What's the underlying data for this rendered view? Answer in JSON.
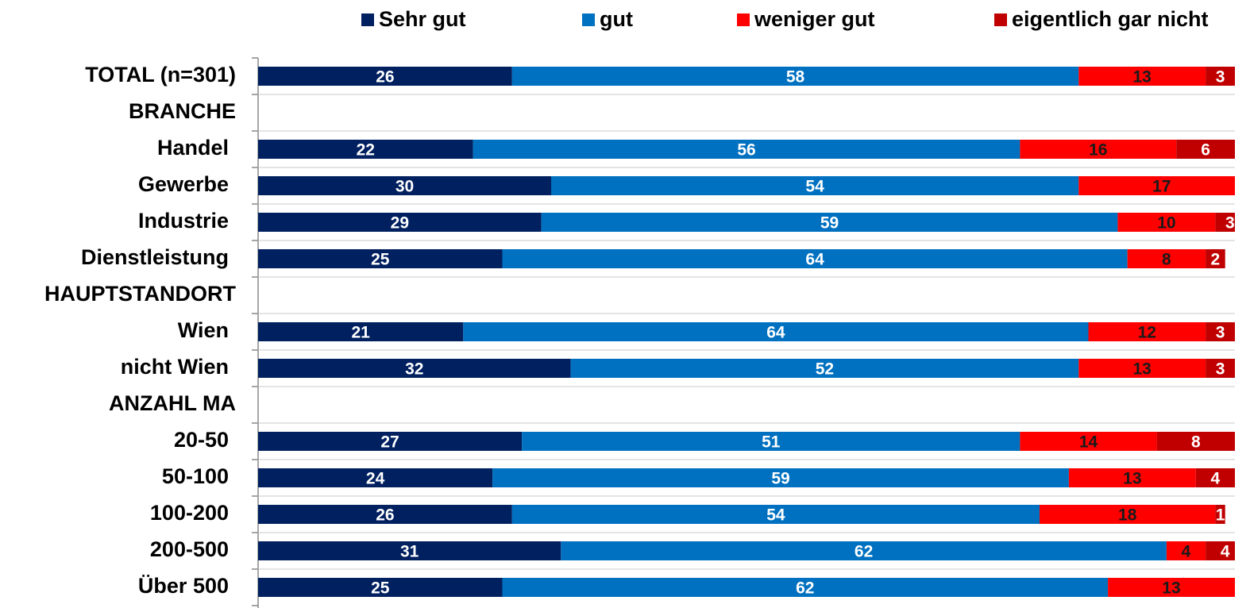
{
  "chart_data": {
    "type": "stacked-bar",
    "orientation": "horizontal",
    "categories": [
      "TOTAL (n=301)",
      "BRANCHE",
      "Handel",
      "Gewerbe",
      "Industrie",
      "Dienstleistung",
      "HAUPTSTANDORT",
      "Wien",
      "nicht Wien",
      "ANZAHL MA",
      "20-50",
      "50-100",
      "100-200",
      "200-500",
      "Über 500"
    ],
    "series": [
      {
        "name": "Sehr gut",
        "color": "#002060",
        "label_color": "#ffffff",
        "values": [
          26,
          null,
          22,
          30,
          29,
          25,
          null,
          21,
          32,
          null,
          27,
          24,
          26,
          31,
          25
        ]
      },
      {
        "name": "gut",
        "color": "#0070c0",
        "label_color": "#ffffff",
        "values": [
          58,
          null,
          56,
          54,
          59,
          64,
          null,
          64,
          52,
          null,
          51,
          59,
          54,
          62,
          62
        ]
      },
      {
        "name": "weniger gut",
        "color": "#ff0000",
        "label_color": "#1a1a1a",
        "values": [
          13,
          null,
          16,
          17,
          10,
          8,
          null,
          12,
          13,
          null,
          14,
          13,
          18,
          4,
          13
        ]
      },
      {
        "name": "eigentlich gar nicht",
        "color": "#c00000",
        "label_color": "#ffffff",
        "values": [
          3,
          null,
          6,
          null,
          3,
          2,
          null,
          3,
          3,
          null,
          8,
          4,
          1,
          4,
          null
        ]
      }
    ],
    "xlim": [
      0,
      100
    ],
    "legend": "top"
  }
}
